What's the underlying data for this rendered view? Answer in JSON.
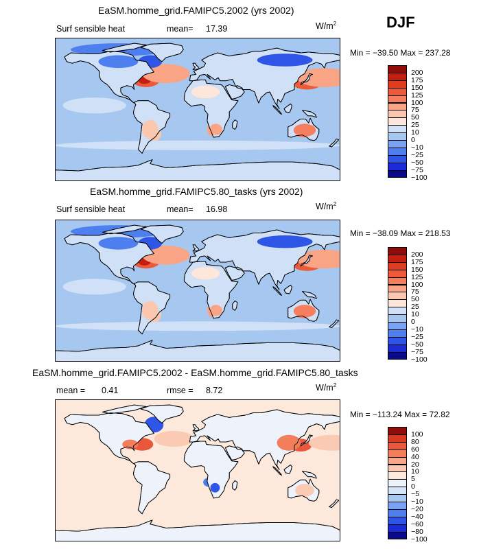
{
  "header": {
    "season": "DJF"
  },
  "panels": [
    {
      "title": "EaSM.homme_grid.FAMIPC5.2002 (yrs 2002)",
      "left_label": "Surf sensible heat",
      "mean_label": "mean=",
      "mean_value": "17.39",
      "rmse_label": "",
      "rmse_value": "",
      "units": "W/m",
      "units_exp": "2",
      "min_max": "Min = −39.50 Max = 237.28"
    },
    {
      "title": "EaSM.homme_grid.FAMIPC5.80_tasks (yrs 2002)",
      "left_label": "Surf sensible heat",
      "mean_label": "mean=",
      "mean_value": "16.98",
      "rmse_label": "",
      "rmse_value": "",
      "units": "W/m",
      "units_exp": "2",
      "min_max": "Min = −38.09 Max = 218.53"
    },
    {
      "title": "EaSM.homme_grid.FAMIPC5.2002 - EaSM.homme_grid.FAMIPC5.80_tasks",
      "left_label": "mean =",
      "mean_label": "",
      "mean_value": "0.41",
      "rmse_label": "rmse =",
      "rmse_value": "8.72",
      "units": "W/m",
      "units_exp": "2",
      "min_max": "Min = −113.24 Max =  72.82"
    }
  ],
  "colors": {
    "ocean_base": "#a6c8f0",
    "land_border": "#000000",
    "sequential_scale": [
      "#0a0a8a",
      "#1a2ad8",
      "#2f55e6",
      "#4d7fef",
      "#79a2f2",
      "#a6c8f0",
      "#cfe0f7",
      "#fde6da",
      "#fbc7ae",
      "#f9a585",
      "#f47e5d",
      "#ec5a3a",
      "#de3b1f",
      "#c41f10",
      "#8f0c08"
    ],
    "difference_scale": [
      "#0a0a8a",
      "#1a2ad8",
      "#2f55e6",
      "#4d7fef",
      "#79a2f2",
      "#a6c8f0",
      "#d3e3f8",
      "#eef3fb",
      "#fde8dc",
      "#fbcab2",
      "#f9a686",
      "#f27e5c",
      "#e9583a",
      "#d8391f",
      "#8f0c08"
    ]
  },
  "chart_data": [
    {
      "type": "heatmap",
      "title": "EaSM.homme_grid.FAMIPC5.2002 (yrs 2002)",
      "variable": "Surf sensible heat",
      "season": "DJF",
      "mean": 17.39,
      "min": -39.5,
      "max": 237.28,
      "units": "W/m2",
      "legend_levels": [
        "200",
        "175",
        "150",
        "125",
        "100",
        "75",
        "50",
        "25",
        "10",
        "0",
        "−10",
        "−25",
        "−50",
        "−75",
        "−100"
      ],
      "legend_placement": "right"
    },
    {
      "type": "heatmap",
      "title": "EaSM.homme_grid.FAMIPC5.80_tasks (yrs 2002)",
      "variable": "Surf sensible heat",
      "season": "DJF",
      "mean": 16.98,
      "min": -38.09,
      "max": 218.53,
      "units": "W/m2",
      "legend_levels": [
        "200",
        "175",
        "150",
        "125",
        "100",
        "75",
        "50",
        "25",
        "10",
        "0",
        "−10",
        "−25",
        "−50",
        "−75",
        "−100"
      ],
      "legend_placement": "right"
    },
    {
      "type": "heatmap",
      "title": "EaSM.homme_grid.FAMIPC5.2002 - EaSM.homme_grid.FAMIPC5.80_tasks",
      "season": "DJF",
      "mean": 0.41,
      "rmse": 8.72,
      "min": -113.24,
      "max": 72.82,
      "units": "W/m2",
      "legend_levels": [
        "100",
        "80",
        "60",
        "40",
        "20",
        "10",
        "5",
        "0",
        "−5",
        "−10",
        "−20",
        "−40",
        "−60",
        "−80",
        "−100"
      ],
      "legend_placement": "right"
    }
  ]
}
